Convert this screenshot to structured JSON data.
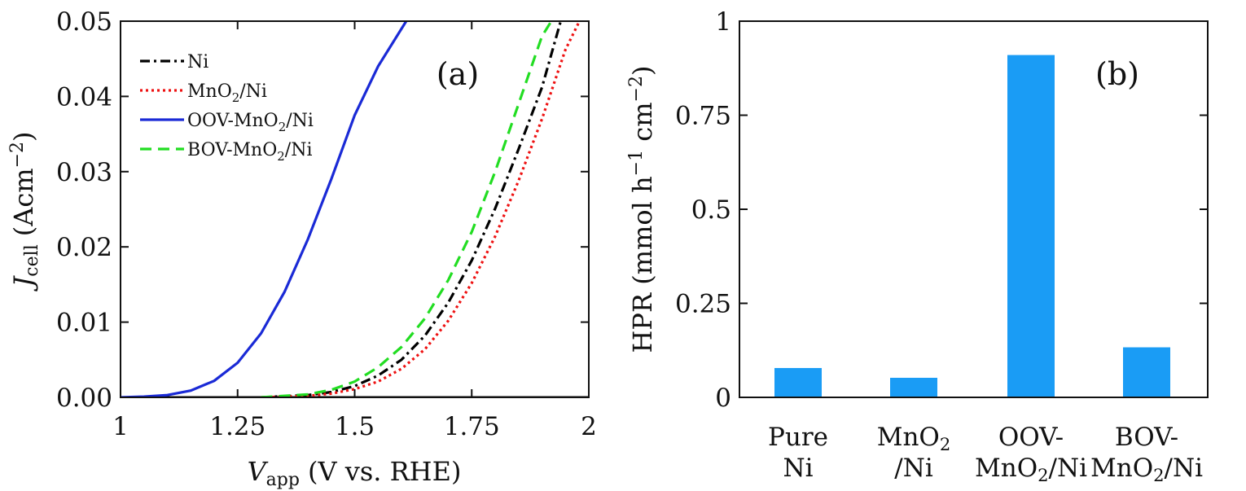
{
  "chart_data": [
    {
      "panel": "(a)",
      "type": "line",
      "xlabel": {
        "main": "V",
        "sub": "app",
        "rest": "(V vs. RHE)"
      },
      "ylabel": {
        "main": "J",
        "sub": "cell",
        "rest": "(Acm",
        "sup": "−2",
        "close": ")"
      },
      "xlim": [
        1,
        2
      ],
      "ylim": [
        0,
        0.05
      ],
      "x_ticks": [
        1,
        1.25,
        1.5,
        1.75,
        2
      ],
      "x_tick_labels": [
        "1",
        "1.25",
        "1.5",
        "1.75",
        "2"
      ],
      "y_ticks": [
        0,
        0.01,
        0.02,
        0.03,
        0.04,
        0.05
      ],
      "y_tick_labels": [
        "0.00",
        "0.01",
        "0.02",
        "0.03",
        "0.04",
        "0.05"
      ],
      "legend": {
        "placement": "top-left"
      },
      "series": [
        {
          "name": "Ni",
          "name_parts": [
            "Ni"
          ],
          "color": "#000000",
          "dash": "dashdot",
          "x": [
            1.3,
            1.4,
            1.45,
            1.5,
            1.55,
            1.6,
            1.65,
            1.7,
            1.75,
            1.8,
            1.85,
            1.9,
            1.94
          ],
          "y": [
            0.0,
            0.0003,
            0.0007,
            0.0015,
            0.0029,
            0.005,
            0.0082,
            0.0126,
            0.0182,
            0.0251,
            0.033,
            0.0412,
            0.05
          ]
        },
        {
          "name": "MnO2/Ni",
          "name_parts": [
            "MnO",
            "2",
            "/Ni"
          ],
          "color": "#ee1111",
          "dash": "dotted",
          "x": [
            1.3,
            1.4,
            1.45,
            1.5,
            1.55,
            1.6,
            1.65,
            1.7,
            1.75,
            1.8,
            1.85,
            1.9,
            1.95,
            1.98
          ],
          "y": [
            0.0,
            0.0002,
            0.0005,
            0.0011,
            0.0021,
            0.0038,
            0.0064,
            0.0102,
            0.0152,
            0.0214,
            0.0288,
            0.037,
            0.0462,
            0.05
          ]
        },
        {
          "name": "OOV-MnO2/Ni",
          "name_parts": [
            "OOV-MnO",
            "2",
            "/Ni"
          ],
          "color": "#1a2ad6",
          "dash": "solid",
          "x": [
            1.0,
            1.05,
            1.1,
            1.15,
            1.2,
            1.25,
            1.3,
            1.35,
            1.4,
            1.45,
            1.5,
            1.55,
            1.61
          ],
          "y": [
            0.0,
            0.0001,
            0.0003,
            0.0009,
            0.0022,
            0.0046,
            0.0085,
            0.014,
            0.021,
            0.029,
            0.0375,
            0.044,
            0.05
          ]
        },
        {
          "name": "BOV-MnO2/Ni",
          "name_parts": [
            "BOV-MnO",
            "2",
            "/Ni"
          ],
          "color": "#22dd22",
          "dash": "dashed",
          "x": [
            1.3,
            1.4,
            1.45,
            1.5,
            1.55,
            1.6,
            1.65,
            1.7,
            1.75,
            1.8,
            1.85,
            1.9,
            1.92
          ],
          "y": [
            0.0,
            0.0004,
            0.001,
            0.0021,
            0.004,
            0.0067,
            0.0105,
            0.0156,
            0.022,
            0.03,
            0.039,
            0.048,
            0.05
          ]
        }
      ]
    },
    {
      "panel": "(b)",
      "type": "bar",
      "ylabel": {
        "main": "HPR (mmol h",
        "sup1": "−1",
        "mid": " cm",
        "sup2": "−2",
        "close": ")"
      },
      "ylim": [
        0,
        1
      ],
      "y_ticks": [
        0,
        0.25,
        0.5,
        0.75,
        1
      ],
      "y_tick_labels": [
        "0",
        "0.25",
        "0.5",
        "0.75",
        "1"
      ],
      "bar_color": "#1a9cf5",
      "categories": [
        "Pure Ni",
        "MnO2/Ni",
        "OOV-MnO2/Ni",
        "BOV-MnO2/Ni"
      ],
      "category_lines": [
        [
          [
            "Pure"
          ],
          [
            "Ni"
          ]
        ],
        [
          [
            "MnO",
            "2",
            ""
          ],
          [
            "/Ni"
          ]
        ],
        [
          [
            "OOV-"
          ],
          [
            "MnO",
            "2",
            "/Ni"
          ]
        ],
        [
          [
            "BOV-"
          ],
          [
            "MnO",
            "2",
            "/Ni"
          ]
        ]
      ],
      "values": [
        0.078,
        0.052,
        0.91,
        0.133
      ]
    }
  ]
}
